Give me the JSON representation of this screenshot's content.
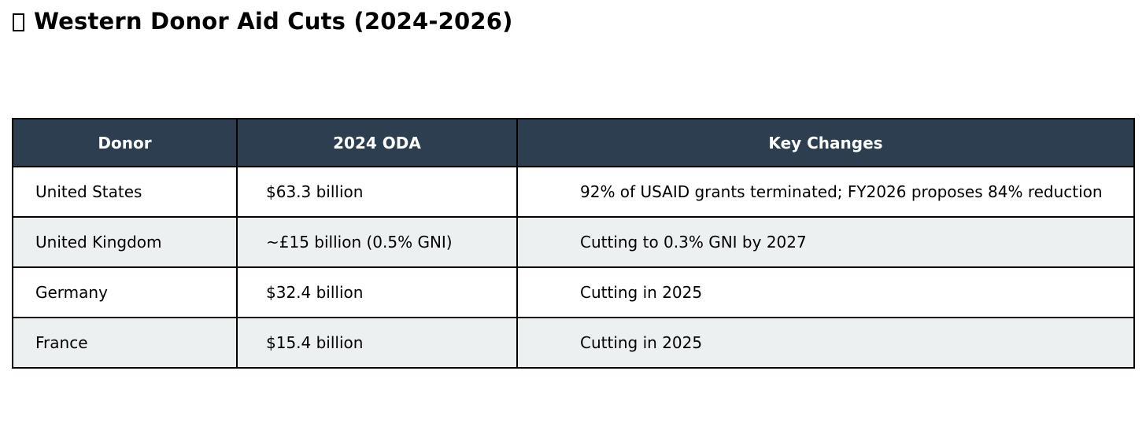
{
  "title": {
    "missing_glyph": "",
    "text": "Western Donor Aid Cuts (2024-2026)"
  },
  "chart_data": {
    "type": "table",
    "title": "Western Donor Aid Cuts (2024-2026)",
    "columns": [
      "Donor",
      "2024 ODA",
      "Key Changes"
    ],
    "rows": [
      [
        "United States",
        "$63.3 billion",
        "92% of USAID grants terminated; FY2026 proposes 84% reduction"
      ],
      [
        "United Kingdom",
        "~£15 billion (0.5% GNI)",
        "Cutting to 0.3% GNI by 2027"
      ],
      [
        "Germany",
        "$32.4 billion",
        "Cutting in 2025"
      ],
      [
        "France",
        "$15.4 billion",
        "Cutting in 2025"
      ]
    ],
    "layout": {
      "legend": "none",
      "grid": "table-borders",
      "header_align": "center",
      "cell_align": "left",
      "alternating_rows": true
    },
    "colors": {
      "header_background": "#2C3E50",
      "header_text": "#FDFEFE",
      "row_background": "#FFFFFF",
      "row_alt_background": "#ECF0F1",
      "border": "#000000",
      "body_text": "#000000"
    }
  }
}
